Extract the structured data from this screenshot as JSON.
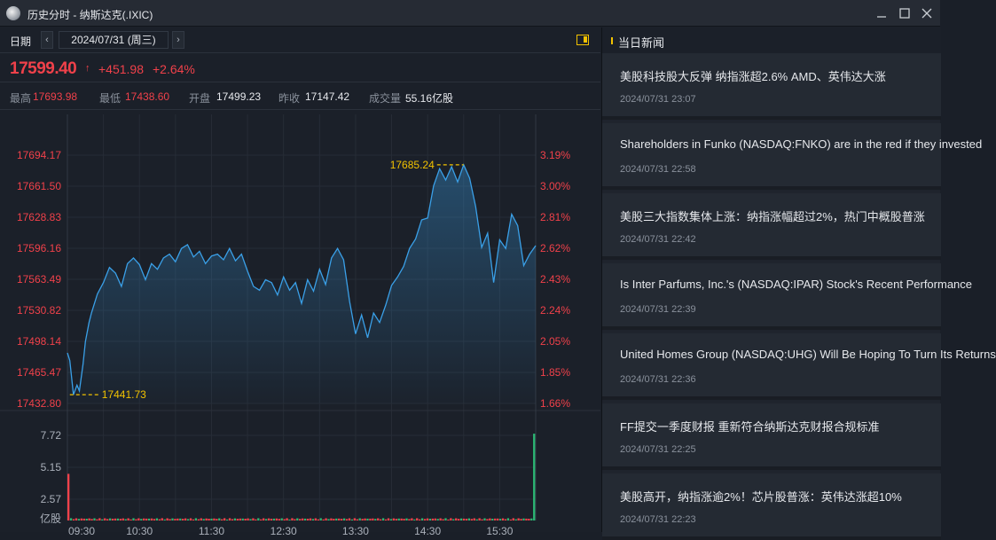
{
  "window": {
    "title": "历史分时 - 纳斯达克(.IXIC)"
  },
  "datebar": {
    "label": "日期",
    "prev": "‹",
    "next": "›",
    "date": "2024/07/31 (周三)"
  },
  "quote": {
    "price": "17599.40",
    "arrow": "↑",
    "change": "+451.98",
    "change_pct": "+2.64%"
  },
  "stats": {
    "high_label": "最高",
    "high": "17693.98",
    "low_label": "最低",
    "low": "17438.60",
    "open_label": "开盘",
    "open": "17499.23",
    "prev_close_label": "昨收",
    "prev_close": "17147.42",
    "volume_label": "成交量",
    "volume": "55.16亿股"
  },
  "colors": {
    "up": "#f0414a",
    "down": "#2bb673",
    "line": "#3aa0e8",
    "marker": "#f2c200"
  },
  "chart_data": {
    "type": "line",
    "y_left_ticks": [
      "17694.17",
      "17661.50",
      "17628.83",
      "17596.16",
      "17563.49",
      "17530.82",
      "17498.14",
      "17465.47",
      "17432.80"
    ],
    "y_right_ticks": [
      "3.19%",
      "3.00%",
      "2.81%",
      "2.62%",
      "2.43%",
      "2.24%",
      "2.05%",
      "1.85%",
      "1.66%"
    ],
    "ylim": [
      17432.8,
      17694.17
    ],
    "x_ticks": [
      "09:30",
      "10:30",
      "11:30",
      "12:30",
      "13:30",
      "14:30",
      "15:30"
    ],
    "x_range": [
      "09:30",
      "16:00"
    ],
    "high_label": "17685.24",
    "low_label": "17441.73",
    "series": [
      {
        "x": [
          "09:30",
          "09:32",
          "09:35",
          "09:38",
          "09:40",
          "09:43",
          "09:45",
          "09:48",
          "09:50",
          "09:55",
          "10:00",
          "10:05",
          "10:10",
          "10:15",
          "10:20",
          "10:25",
          "10:30",
          "10:35",
          "10:40",
          "10:45",
          "10:50",
          "10:55",
          "11:00",
          "11:05",
          "11:10",
          "11:15",
          "11:20",
          "11:25",
          "11:30",
          "11:35",
          "11:40",
          "11:45",
          "11:50",
          "11:55",
          "12:00",
          "12:05",
          "12:10",
          "12:15",
          "12:20",
          "12:25",
          "12:30",
          "12:35",
          "12:40",
          "12:45",
          "12:50",
          "12:55",
          "13:00",
          "13:05",
          "13:10",
          "13:15",
          "13:20",
          "13:25",
          "13:30",
          "13:35",
          "13:40",
          "13:45",
          "13:50",
          "13:55",
          "14:00",
          "14:05",
          "14:10",
          "14:15",
          "14:20",
          "14:25",
          "14:30",
          "14:35",
          "14:40",
          "14:45",
          "14:50",
          "14:55",
          "15:00",
          "15:05",
          "15:10",
          "15:15",
          "15:20",
          "15:25",
          "15:30",
          "15:35",
          "15:40",
          "15:45",
          "15:50",
          "15:55",
          "16:00"
        ],
        "values": [
          17486,
          17478,
          17442,
          17452,
          17446,
          17474,
          17498,
          17518,
          17528,
          17548,
          17560,
          17576,
          17570,
          17556,
          17580,
          17586,
          17579,
          17563,
          17580,
          17574,
          17586,
          17590,
          17582,
          17596,
          17600,
          17587,
          17593,
          17580,
          17588,
          17590,
          17584,
          17596,
          17583,
          17590,
          17572,
          17556,
          17552,
          17563,
          17560,
          17547,
          17566,
          17552,
          17560,
          17538,
          17563,
          17551,
          17574,
          17558,
          17586,
          17596,
          17584,
          17540,
          17506,
          17526,
          17502,
          17528,
          17518,
          17536,
          17557,
          17566,
          17577,
          17596,
          17606,
          17626,
          17628,
          17662,
          17680,
          17668,
          17682,
          17666,
          17684,
          17670,
          17640,
          17597,
          17612,
          17560,
          17605,
          17596,
          17632,
          17620,
          17578,
          17590,
          17599
        ]
      }
    ],
    "volume": {
      "y_ticks": [
        "7.72",
        "5.15",
        "2.57"
      ],
      "unit": "亿股",
      "ylim": [
        0,
        8.5
      ],
      "first_bar": 4.3,
      "last_bar": 8.0,
      "typical": 0.15
    }
  },
  "news": {
    "title": "当日新闻",
    "items": [
      {
        "headline": "美股科技股大反弹 纳指涨超2.6% AMD、英伟达大涨",
        "time": "2024/07/31 23:07"
      },
      {
        "headline": "Shareholders in Funko (NASDAQ:FNKO) are in the red if they invested",
        "time": "2024/07/31 22:58"
      },
      {
        "headline": "美股三大指数集体上涨：纳指涨幅超过2%，热门中概股普涨",
        "time": "2024/07/31 22:42"
      },
      {
        "headline": "Is Inter Parfums, Inc.'s (NASDAQ:IPAR) Stock's Recent Performance",
        "time": "2024/07/31 22:39"
      },
      {
        "headline": "United Homes Group (NASDAQ:UHG) Will Be Hoping To Turn Its Returns",
        "time": "2024/07/31 22:36"
      },
      {
        "headline": "FF提交一季度财报 重新符合纳斯达克财报合规标准",
        "time": "2024/07/31 22:25"
      },
      {
        "headline": "美股高开，纳指涨逾2%！芯片股普涨：英伟达涨超10%",
        "time": "2024/07/31 22:23"
      }
    ]
  }
}
